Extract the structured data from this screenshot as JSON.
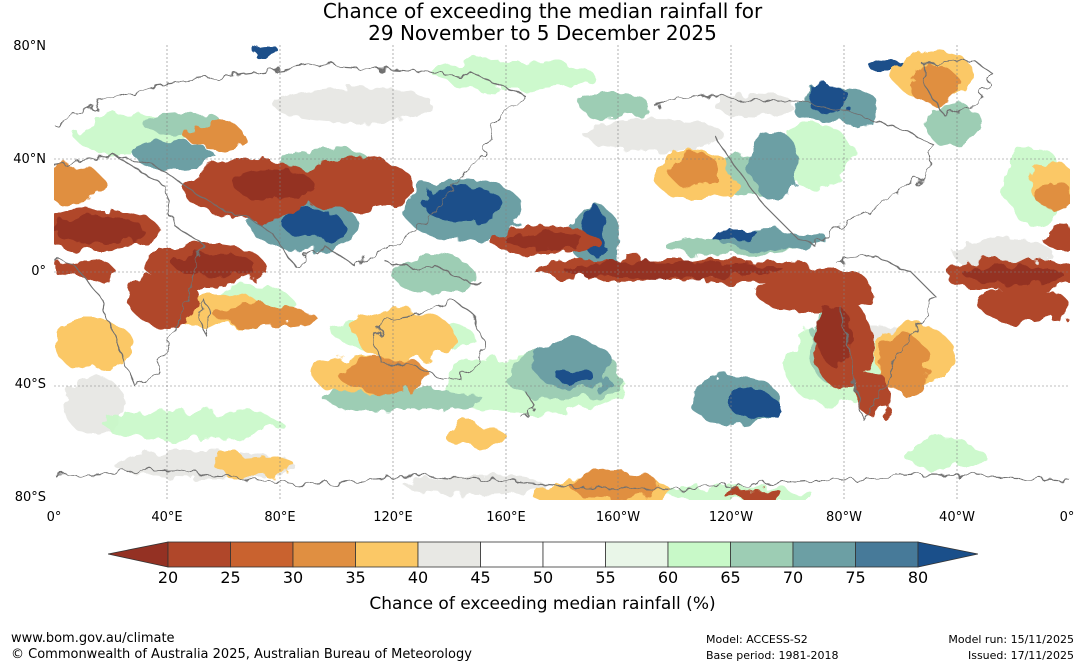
{
  "title": {
    "line1": "Chance of exceeding the median rainfall for",
    "line2": "29 November to 5 December 2025"
  },
  "map": {
    "lat_labels": [
      "80°N",
      "40°N",
      "0°",
      "40°S",
      "80°S"
    ],
    "lon_labels": [
      "0°",
      "40°E",
      "80°E",
      "120°E",
      "160°E",
      "160°W",
      "120°W",
      "80°W",
      "40°W",
      "0°"
    ]
  },
  "colorbar": {
    "ticks": [
      "20",
      "25",
      "30",
      "35",
      "40",
      "45",
      "50",
      "55",
      "60",
      "65",
      "70",
      "75",
      "80"
    ],
    "low_color": "#943123",
    "high_color": "#1a4f8a",
    "colors": [
      "#b0472a",
      "#c9622f",
      "#e08f41",
      "#fbc866",
      "#e8e8e4",
      "#ffffff",
      "#ffffff",
      "#e9f6e8",
      "#c8f9c8",
      "#9dcdb4",
      "#6c9fa4",
      "#477a99"
    ],
    "label": "Chance of exceeding median rainfall (%)"
  },
  "footer": {
    "website": "www.bom.gov.au/climate",
    "copyright": "© Commonwealth of Australia 2025, Australian Bureau of Meteorology",
    "model": "Model: ACCESS-S2",
    "base_period": "Base period: 1981-2018",
    "model_run": "Model run: 15/11/2025",
    "issued": "Issued: 17/11/2025"
  }
}
